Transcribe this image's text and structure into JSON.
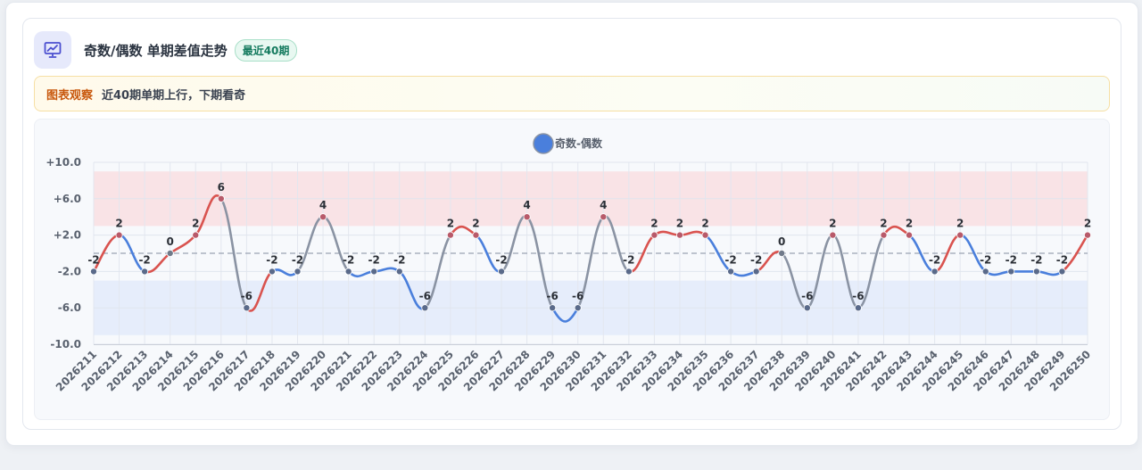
{
  "header": {
    "title": "奇数/偶数 单期差值走势",
    "badge": "最近40期",
    "icon": "chart-trend-icon"
  },
  "observation": {
    "label": "图表观察",
    "text": "近40期单期上行，下期看奇"
  },
  "colors": {
    "up": "#d9534f",
    "down": "#4a7fdc",
    "flat": "#8a93a3",
    "legend": "#4a7fdc",
    "upper_band": "#f9e3e6",
    "lower_band": "#e6edfb"
  },
  "chart_data": {
    "type": "line",
    "legend": "奇数-偶数",
    "legend_position": "top-center",
    "x": [
      "2026211",
      "2026212",
      "2026213",
      "2026214",
      "2026215",
      "2026216",
      "2026217",
      "2026218",
      "2026219",
      "2026220",
      "2026221",
      "2026222",
      "2026223",
      "2026224",
      "2026225",
      "2026226",
      "2026227",
      "2026228",
      "2026229",
      "2026230",
      "2026231",
      "2026232",
      "2026233",
      "2026234",
      "2026235",
      "2026236",
      "2026237",
      "2026238",
      "2026239",
      "2026240",
      "2026241",
      "2026242",
      "2026243",
      "2026244",
      "2026245",
      "2026246",
      "2026247",
      "2026248",
      "2026249",
      "2026250"
    ],
    "values": [
      -2,
      2,
      -2,
      0,
      2,
      6,
      -6,
      -2,
      -2,
      4,
      -2,
      -2,
      -2,
      -6,
      2,
      2,
      -2,
      4,
      -6,
      -6,
      4,
      -2,
      2,
      2,
      2,
      -2,
      -2,
      0,
      -6,
      2,
      -6,
      2,
      2,
      -2,
      2,
      -2,
      -2,
      -2,
      -2,
      2
    ],
    "y_ticks": [
      "+10.0",
      "+6.0",
      "+2.0",
      "-2.0",
      "-6.0",
      "-10.0"
    ],
    "ylim": [
      -10,
      10
    ],
    "bands": [
      {
        "from": 3,
        "to": 9,
        "color": "#f9e3e6"
      },
      {
        "from": -9,
        "to": -3,
        "color": "#e6edfb"
      }
    ],
    "baseline": 0,
    "grid": true
  }
}
